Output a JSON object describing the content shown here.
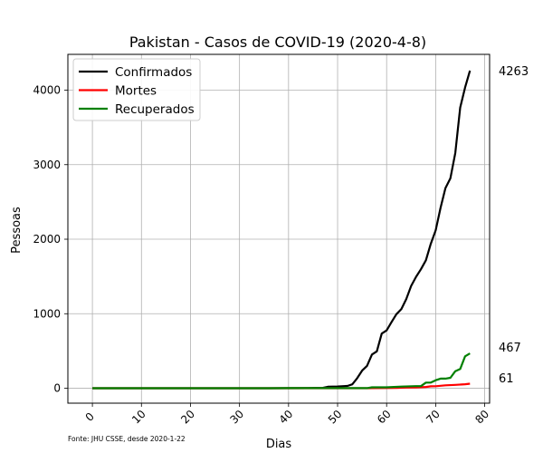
{
  "chart_data": {
    "type": "line",
    "title": "Pakistan - Casos de COVID-19 (2020-4-8)",
    "xlabel": "Dias",
    "ylabel": "Pessoas",
    "xlim": [
      -5,
      81
    ],
    "ylim": [
      -200,
      4480
    ],
    "xticks": [
      0,
      10,
      20,
      30,
      40,
      50,
      60,
      70,
      80
    ],
    "yticks": [
      0,
      1000,
      2000,
      3000,
      4000
    ],
    "grid": true,
    "legend_position": "top-left",
    "source_note": "Fonte: JHU CSSE, desde 2020-1-22",
    "series": [
      {
        "name": "Confirmados",
        "color": "#000000",
        "end_label": "4263",
        "points": [
          [
            0,
            0
          ],
          [
            36,
            0
          ],
          [
            44,
            2
          ],
          [
            47,
            5
          ],
          [
            48,
            20
          ],
          [
            50,
            24
          ],
          [
            52,
            31
          ],
          [
            53,
            53
          ],
          [
            54,
            136
          ],
          [
            55,
            236
          ],
          [
            56,
            299
          ],
          [
            57,
            453
          ],
          [
            58,
            495
          ],
          [
            59,
            733
          ],
          [
            60,
            776
          ],
          [
            61,
            887
          ],
          [
            62,
            994
          ],
          [
            63,
            1063
          ],
          [
            64,
            1197
          ],
          [
            65,
            1373
          ],
          [
            66,
            1495
          ],
          [
            67,
            1597
          ],
          [
            68,
            1717
          ],
          [
            69,
            1938
          ],
          [
            70,
            2118
          ],
          [
            71,
            2421
          ],
          [
            72,
            2686
          ],
          [
            73,
            2818
          ],
          [
            74,
            3157
          ],
          [
            75,
            3766
          ],
          [
            76,
            4035
          ],
          [
            77,
            4263
          ]
        ]
      },
      {
        "name": "Mortes",
        "color": "#ff0000",
        "end_label": "61",
        "points": [
          [
            0,
            0
          ],
          [
            56,
            0
          ],
          [
            57,
            2
          ],
          [
            60,
            3
          ],
          [
            62,
            5
          ],
          [
            64,
            9
          ],
          [
            66,
            11
          ],
          [
            68,
            18
          ],
          [
            69,
            26
          ],
          [
            70,
            27
          ],
          [
            71,
            34
          ],
          [
            72,
            40
          ],
          [
            74,
            45
          ],
          [
            76,
            54
          ],
          [
            77,
            61
          ]
        ]
      },
      {
        "name": "Recuperados",
        "color": "#008000",
        "end_label": "467",
        "points": [
          [
            0,
            0
          ],
          [
            36,
            0
          ],
          [
            40,
            2
          ],
          [
            48,
            2
          ],
          [
            56,
            2
          ],
          [
            57,
            13
          ],
          [
            60,
            13
          ],
          [
            63,
            23
          ],
          [
            66,
            29
          ],
          [
            67,
            29
          ],
          [
            68,
            76
          ],
          [
            69,
            76
          ],
          [
            70,
            107
          ],
          [
            71,
            130
          ],
          [
            72,
            130
          ],
          [
            73,
            140
          ],
          [
            74,
            229
          ],
          [
            75,
            258
          ],
          [
            76,
            429
          ],
          [
            77,
            467
          ]
        ]
      }
    ]
  }
}
